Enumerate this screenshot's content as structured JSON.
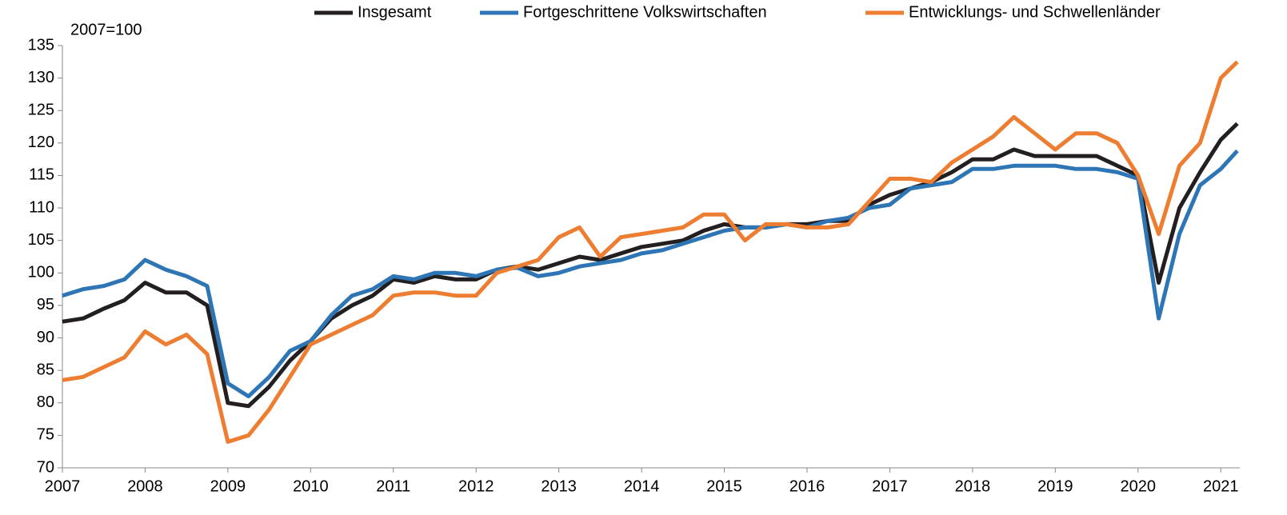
{
  "chart_data": {
    "type": "line",
    "annotation": "2007=100",
    "x": [
      2007.0,
      2007.25,
      2007.5,
      2007.75,
      2008.0,
      2008.25,
      2008.5,
      2008.75,
      2009.0,
      2009.25,
      2009.5,
      2009.75,
      2010.0,
      2010.25,
      2010.5,
      2010.75,
      2011.0,
      2011.25,
      2011.5,
      2011.75,
      2012.0,
      2012.25,
      2012.5,
      2012.75,
      2013.0,
      2013.25,
      2013.5,
      2013.75,
      2014.0,
      2014.25,
      2014.5,
      2014.75,
      2015.0,
      2015.25,
      2015.5,
      2015.75,
      2016.0,
      2016.25,
      2016.5,
      2016.75,
      2017.0,
      2017.25,
      2017.5,
      2017.75,
      2018.0,
      2018.25,
      2018.5,
      2018.75,
      2019.0,
      2019.25,
      2019.5,
      2019.75,
      2020.0,
      2020.25,
      2020.5,
      2020.75,
      2021.0,
      2021.2
    ],
    "series": [
      {
        "name": "Insgesamt",
        "color": "#231f20",
        "values": [
          92.5,
          93,
          94.5,
          95.8,
          98.5,
          97,
          97,
          95,
          80,
          79.5,
          82.5,
          86.5,
          89.5,
          93,
          95,
          96.5,
          99,
          98.5,
          99.5,
          99,
          99,
          100.5,
          101,
          100.5,
          101.5,
          102.5,
          102,
          103,
          104,
          104.5,
          105,
          106.5,
          107.5,
          107,
          107,
          107.5,
          107.5,
          108,
          108,
          110.5,
          112,
          113,
          114,
          115.5,
          117.5,
          117.5,
          119,
          118,
          118,
          118,
          118,
          116.5,
          115,
          98.5,
          110,
          115.5,
          120.5,
          123
        ]
      },
      {
        "name": "Fortgeschrittene Volkswirtschaften",
        "color": "#2e75b6",
        "values": [
          96.5,
          97.5,
          98,
          99,
          102,
          100.5,
          99.5,
          98,
          83,
          81,
          84,
          88,
          89.5,
          93.5,
          96.5,
          97.5,
          99.5,
          99,
          100,
          100,
          99.5,
          100.5,
          100.8,
          99.5,
          100,
          101,
          101.5,
          102,
          103,
          103.5,
          104.5,
          105.5,
          106.5,
          107,
          107,
          107.5,
          107,
          108,
          108.5,
          110,
          110.5,
          113,
          113.5,
          114,
          116,
          116,
          116.5,
          116.5,
          116.5,
          116,
          116,
          115.5,
          114.5,
          93,
          106,
          113.5,
          116,
          118.8
        ]
      },
      {
        "name": "Entwicklungs- und Schwellenländer",
        "color": "#ed7d31",
        "values": [
          83.5,
          84,
          85.5,
          87,
          91,
          89,
          90.5,
          87.5,
          74,
          75,
          79,
          84,
          89,
          90.5,
          92,
          93.5,
          96.5,
          97,
          97,
          96.5,
          96.5,
          100,
          101,
          102,
          105.5,
          107,
          102.5,
          105.5,
          106,
          106.5,
          107,
          109,
          109,
          105,
          107.5,
          107.5,
          107,
          107,
          107.5,
          111,
          114.5,
          114.5,
          114,
          117,
          119,
          121,
          124,
          121.5,
          119,
          121.5,
          121.5,
          120,
          115,
          106,
          116.5,
          120,
          130,
          132.5
        ]
      }
    ],
    "xlim": [
      2007,
      2021.23
    ],
    "xticks": [
      2007,
      2008,
      2009,
      2010,
      2011,
      2012,
      2013,
      2014,
      2015,
      2016,
      2017,
      2018,
      2019,
      2020,
      2021
    ],
    "ylim": [
      70,
      135
    ],
    "yticks": [
      70,
      75,
      80,
      85,
      90,
      95,
      100,
      105,
      110,
      115,
      120,
      125,
      130,
      135
    ],
    "legend": "top"
  }
}
